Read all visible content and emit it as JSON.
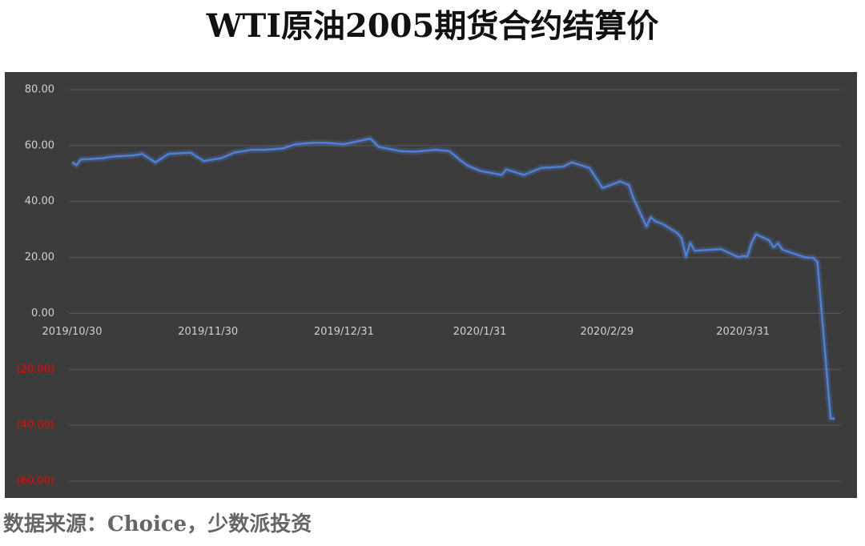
{
  "chart_data": {
    "type": "line",
    "title": "WTI原油2005期货合约结算价",
    "source": "数据来源：Choice，少数派投资",
    "color": "#4f80d8",
    "negative_label_color": "#ff0000",
    "grid": true,
    "x": [
      "2019/10/30",
      "2019/10/31",
      "2019/11/1",
      "2019/11/6",
      "2019/11/8",
      "2019/11/13",
      "2019/11/15",
      "2019/11/18",
      "2019/11/21",
      "2019/11/26",
      "2019/11/29",
      "2019/12/3",
      "2019/12/6",
      "2019/12/10",
      "2019/12/13",
      "2019/12/17",
      "2019/12/20",
      "2019/12/24",
      "2019/12/27",
      "2019/12/31",
      "2020/1/3",
      "2020/1/6",
      "2020/1/8",
      "2020/1/13",
      "2020/1/16",
      "2020/1/21",
      "2020/1/24",
      "2020/1/28",
      "2020/1/31",
      "2020/2/5",
      "2020/2/6",
      "2020/2/10",
      "2020/2/14",
      "2020/2/19",
      "2020/2/21",
      "2020/2/25",
      "2020/2/28",
      "2020/3/3",
      "2020/3/5",
      "2020/3/6",
      "2020/3/9",
      "2020/3/10",
      "2020/3/11",
      "2020/3/13",
      "2020/3/16",
      "2020/3/17",
      "2020/3/18",
      "2020/3/19",
      "2020/3/20",
      "2020/3/26",
      "2020/3/30",
      "2020/3/31",
      "2020/4/1",
      "2020/4/2",
      "2020/4/3",
      "2020/4/6",
      "2020/4/7",
      "2020/4/8",
      "2020/4/9",
      "2020/4/14",
      "2020/4/15",
      "2020/4/16",
      "2020/4/17",
      "2020/4/20",
      "2020/4/21"
    ],
    "values": [
      54.1,
      53.0,
      55.0,
      55.5,
      56.0,
      56.5,
      57.0,
      54.0,
      57.0,
      57.5,
      54.5,
      55.5,
      57.5,
      58.5,
      58.5,
      59.0,
      60.5,
      61.0,
      61.0,
      60.5,
      61.5,
      62.5,
      59.5,
      58.0,
      57.8,
      58.5,
      58.0,
      53.0,
      51.0,
      49.5,
      51.5,
      49.5,
      52.0,
      52.5,
      54.0,
      52.0,
      44.8,
      47.2,
      45.9,
      41.3,
      31.1,
      34.4,
      33.0,
      31.7,
      28.7,
      27.0,
      20.4,
      25.2,
      22.4,
      23.0,
      20.1,
      20.5,
      20.3,
      25.3,
      28.3,
      26.1,
      23.6,
      25.1,
      22.8,
      20.1,
      19.9,
      19.9,
      18.3,
      -37.6,
      -37.6
    ],
    "xlim": [
      "2019/10/30",
      "2020/4/22"
    ],
    "xticks": [
      "2019/10/30",
      "2019/11/30",
      "2019/12/31",
      "2020/1/31",
      "2020/2/29",
      "2020/3/31"
    ],
    "ylim": [
      -60,
      80
    ],
    "yticks": [
      {
        "value": -60,
        "label": "(60.00)"
      },
      {
        "value": -40,
        "label": "(40.00)"
      },
      {
        "value": -20,
        "label": "(20.00)"
      },
      {
        "value": 0,
        "label": "0.00"
      },
      {
        "value": 20,
        "label": "20.00"
      },
      {
        "value": 40,
        "label": "40.00"
      },
      {
        "value": 60,
        "label": "60.00"
      },
      {
        "value": 80,
        "label": "80.00"
      }
    ]
  }
}
